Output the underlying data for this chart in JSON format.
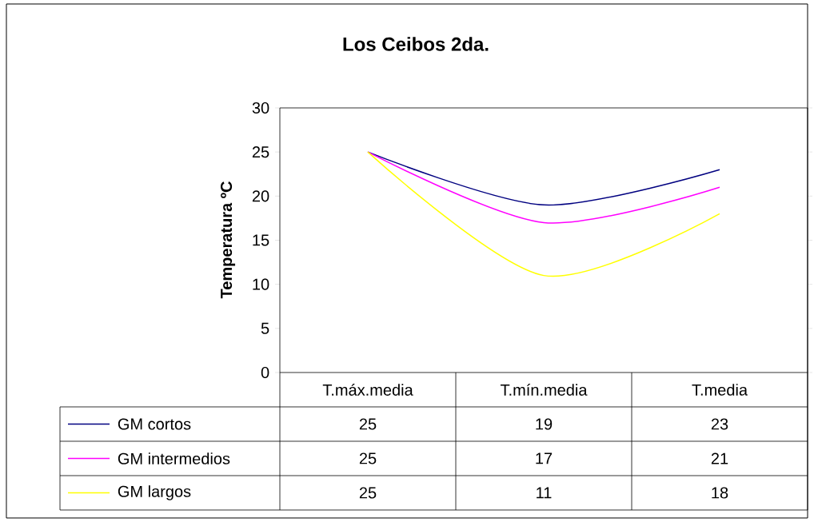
{
  "chart_data": {
    "type": "line",
    "title": "Los Ceibos 2da.",
    "ylabel": "Temperatura ºC",
    "categories": [
      "T.máx.media",
      "T.mín.media",
      "T.media"
    ],
    "series": [
      {
        "name": "GM cortos",
        "color": "#000080",
        "values": [
          25,
          19,
          23
        ]
      },
      {
        "name": "GM intermedios",
        "color": "#ff00ff",
        "values": [
          25,
          17,
          21
        ]
      },
      {
        "name": "GM largos",
        "color": "#ffff00",
        "values": [
          25,
          11,
          18
        ]
      }
    ],
    "ylim": [
      0,
      30
    ],
    "yticks": [
      0,
      5,
      10,
      15,
      20,
      25,
      30
    ],
    "data_labels": true,
    "legend": "bottom",
    "marker": "none",
    "line_style": "solid",
    "grid": false
  }
}
